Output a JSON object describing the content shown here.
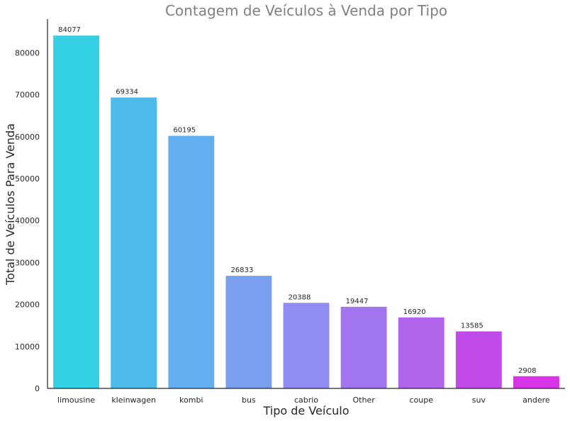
{
  "chart_data": {
    "type": "bar",
    "title": "Contagem de Veículos à Venda por Tipo",
    "xlabel": "Tipo de Veículo",
    "ylabel": "Total de Veículos Para Venda",
    "ylim": [
      0,
      88000
    ],
    "yticks": [
      0,
      10000,
      20000,
      30000,
      40000,
      50000,
      60000,
      70000,
      80000
    ],
    "grid": false,
    "categories": [
      "limousine",
      "kleinwagen",
      "kombi",
      "bus",
      "cabrio",
      "Other",
      "coupe",
      "suv",
      "andere"
    ],
    "values": [
      84077,
      69334,
      60195,
      26833,
      20388,
      19447,
      16920,
      13585,
      2908
    ],
    "colors": [
      "#33d1e3",
      "#4dbbe9",
      "#62aef0",
      "#7b9ff0",
      "#918cf2",
      "#a075ee",
      "#b064eb",
      "#c24be8",
      "#d535e6"
    ]
  }
}
